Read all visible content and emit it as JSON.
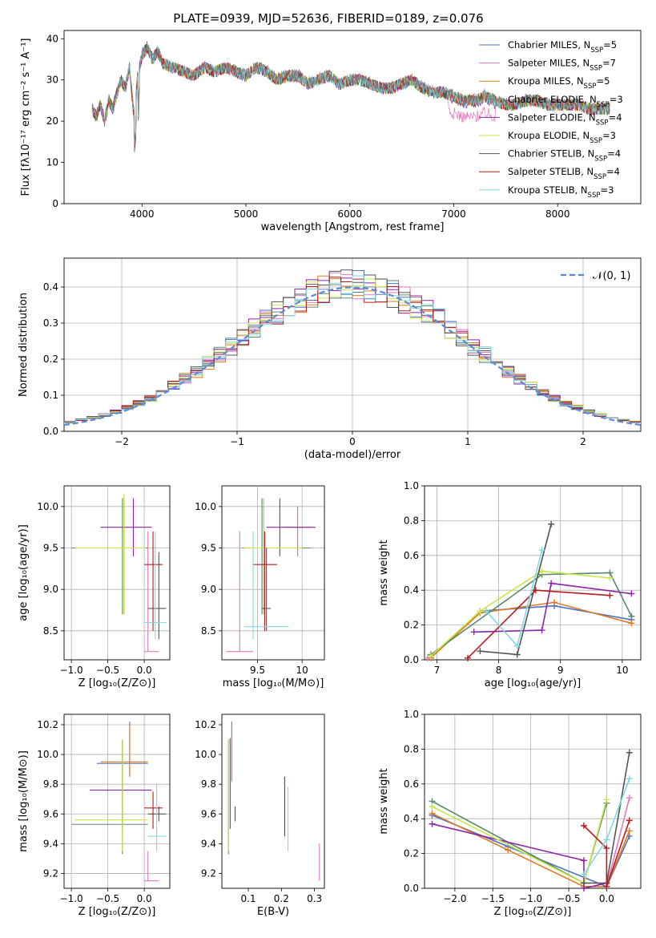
{
  "chart_data": [
    {
      "id": "spectrum",
      "type": "line",
      "title": "PLATE=0939, MJD=52636, FIBERID=0189, z=0.076",
      "xlabel": "wavelength [Angstrom, rest frame]",
      "ylabel": "Flux [fλ10⁻¹⁷ erg cm⁻² s⁻¹ A⁻¹]",
      "xlim": [
        3250,
        8800
      ],
      "ylim": [
        0,
        42
      ],
      "xticks": [
        4000,
        5000,
        6000,
        7000,
        8000
      ],
      "yticks": [
        0,
        10,
        20,
        30,
        40
      ],
      "legend_position": "top-right",
      "data_trace": {
        "x": [
          3520,
          3560,
          3600,
          3640,
          3680,
          3720,
          3760,
          3800,
          3840,
          3880,
          3920,
          3960,
          4000,
          4050,
          4100,
          4150,
          4200,
          4300,
          4400,
          4500,
          4600,
          4700,
          4800,
          4900,
          5000,
          5100,
          5200,
          5300,
          5400,
          5500,
          5600,
          5700,
          5800,
          5900,
          6000,
          6100,
          6200,
          6300,
          6400,
          6500,
          6600,
          6700,
          6800,
          6900,
          7000,
          7100,
          7200,
          7300,
          7400,
          7500,
          7600,
          7700,
          7800,
          7900,
          8000,
          8100,
          8200,
          8300,
          8400,
          8500
        ],
        "y": [
          23,
          21,
          24,
          20,
          25,
          23,
          27,
          30,
          28,
          33,
          22,
          31,
          36,
          38,
          35,
          37,
          34,
          33,
          32,
          31,
          33,
          32,
          33,
          32,
          31,
          33,
          32,
          30,
          31,
          31,
          29,
          30,
          31,
          29,
          30,
          30,
          29,
          28,
          28,
          29,
          30,
          28,
          27,
          27,
          26,
          25,
          25,
          26,
          25,
          24,
          24,
          25,
          25,
          24,
          24,
          24,
          24,
          23,
          23,
          23
        ]
      },
      "model_offsets": [
        {
          "name": "Chabrier MILES, N$_{SSP}$=5",
          "color": "#4a72c4",
          "red_offset": 0
        },
        {
          "name": "Salpeter MILES, N$_{SSP}$=7",
          "color": "#e377c2",
          "red_offset": -4
        },
        {
          "name": "Kroupa MILES, N$_{SSP}$=5",
          "color": "#e07b20",
          "red_offset": 0
        },
        {
          "name": "Chabrier ELODIE, N$_{SSP}$=3",
          "color": "#5a8a6a",
          "red_offset": 0
        },
        {
          "name": "Salpeter ELODIE, N$_{SSP}$=4",
          "color": "#8e24aa",
          "red_offset": -0.5
        },
        {
          "name": "Kroupa ELODIE, N$_{SSP}$=3",
          "color": "#c8e645",
          "red_offset": 0
        },
        {
          "name": "Chabrier STELIB, N$_{SSP}$=4",
          "color": "#555555",
          "red_offset": 0
        },
        {
          "name": "Salpeter STELIB, N$_{SSP}$=4",
          "color": "#b71c1c",
          "red_offset": 0
        },
        {
          "name": "Kroupa STELIB, N$_{SSP}$=3",
          "color": "#80d8e0",
          "red_offset": 0
        }
      ]
    },
    {
      "id": "residuals",
      "type": "line",
      "xlabel": "(data-model)/error",
      "ylabel": "Normed distribution",
      "xlim": [
        -2.5,
        2.5
      ],
      "ylim": [
        0,
        0.48
      ],
      "xticks": [
        -2,
        -1,
        0,
        1,
        2
      ],
      "yticks": [
        0.0,
        0.1,
        0.2,
        0.3,
        0.4
      ],
      "grid": true,
      "legend": "𝒩(0, 1)",
      "legend_position": "top-right"
    },
    {
      "id": "z_age",
      "type": "scatter",
      "xlabel": "Z [log₁₀(Z/Z⊙)]",
      "ylabel": "age [log₁₀(age/yr)]",
      "xlim": [
        -1.1,
        0.35
      ],
      "ylim": [
        8.15,
        10.25
      ],
      "xticks": [
        -1.0,
        -0.5,
        0.0
      ],
      "yticks": [
        8.5,
        9.0,
        9.5,
        10.0
      ],
      "grid": true,
      "points": [
        {
          "c": 0,
          "x": -0.28,
          "y": 9.5,
          "xe": [
            -1.0,
            0.05
          ],
          "ye": [
            8.7,
            10.1
          ]
        },
        {
          "c": 1,
          "x": 0.05,
          "y": 8.25,
          "xe": [
            0.0,
            0.2
          ],
          "ye": [
            8.25,
            9.7
          ]
        },
        {
          "c": 2,
          "x": -0.28,
          "y": 9.5,
          "xe": [
            -1.0,
            0.05
          ],
          "ye": [
            8.7,
            10.05
          ]
        },
        {
          "c": 3,
          "x": -0.3,
          "y": 9.5,
          "xe": [
            -1.0,
            0.05
          ],
          "ye": [
            8.7,
            10.1
          ]
        },
        {
          "c": 4,
          "x": -0.15,
          "y": 9.75,
          "xe": [
            -0.6,
            0.1
          ],
          "ye": [
            9.4,
            10.1
          ]
        },
        {
          "c": 5,
          "x": -0.28,
          "y": 9.5,
          "xe": [
            -0.95,
            0.02
          ],
          "ye": [
            8.7,
            10.15
          ]
        },
        {
          "c": 6,
          "x": 0.2,
          "y": 8.77,
          "xe": [
            0.05,
            0.3
          ],
          "ye": [
            8.4,
            9.45
          ]
        },
        {
          "c": 7,
          "x": 0.12,
          "y": 9.3,
          "xe": [
            0.0,
            0.25
          ],
          "ye": [
            8.5,
            9.7
          ]
        },
        {
          "c": 8,
          "x": 0.15,
          "y": 8.6,
          "xe": [
            0.0,
            0.3
          ],
          "ye": [
            8.4,
            9.7
          ]
        }
      ]
    },
    {
      "id": "mass_age",
      "type": "scatter",
      "xlabel": "mass [log₁₀(M/M⊙)]",
      "ylabel": "",
      "xlim": [
        9.1,
        10.25
      ],
      "ylim": [
        8.15,
        10.25
      ],
      "xticks": [
        9.5,
        10.0
      ],
      "yticks": [
        8.5,
        9.0,
        9.5,
        10.0
      ],
      "grid": true,
      "points": [
        {
          "c": 0,
          "x": 9.57,
          "y": 9.5,
          "xe": [
            9.35,
            10.1
          ],
          "ye": [
            8.7,
            10.1
          ]
        },
        {
          "c": 1,
          "x": 9.3,
          "y": 8.25,
          "xe": [
            9.15,
            9.45
          ],
          "ye": [
            8.25,
            9.7
          ]
        },
        {
          "c": 2,
          "x": 9.95,
          "y": 9.75,
          "xe": [
            9.8,
            10.1
          ],
          "ye": [
            9.4,
            10.0
          ]
        },
        {
          "c": 3,
          "x": 9.55,
          "y": 9.5,
          "xe": [
            9.33,
            10.1
          ],
          "ye": [
            8.7,
            10.1
          ]
        },
        {
          "c": 4,
          "x": 9.75,
          "y": 9.75,
          "xe": [
            9.6,
            10.15
          ],
          "ye": [
            9.4,
            10.1
          ]
        },
        {
          "c": 5,
          "x": 9.57,
          "y": 9.5,
          "xe": [
            9.35,
            10.0
          ],
          "ye": [
            8.7,
            10.1
          ]
        },
        {
          "c": 6,
          "x": 9.6,
          "y": 8.77,
          "xe": [
            9.55,
            9.65
          ],
          "ye": [
            8.5,
            9.5
          ]
        },
        {
          "c": 7,
          "x": 9.58,
          "y": 9.3,
          "xe": [
            9.45,
            9.72
          ],
          "ye": [
            8.5,
            9.7
          ]
        },
        {
          "c": 8,
          "x": 9.45,
          "y": 8.55,
          "xe": [
            9.35,
            9.85
          ],
          "ye": [
            8.4,
            9.7
          ]
        }
      ]
    },
    {
      "id": "age_weight",
      "type": "line",
      "xlabel": "age [log₁₀(age/yr)]",
      "ylabel": "mass weight",
      "xlim": [
        6.8,
        10.3
      ],
      "ylim": [
        0,
        1.0
      ],
      "xticks": [
        7,
        8,
        9,
        10
      ],
      "yticks": [
        0.0,
        0.2,
        0.4,
        0.6,
        0.8,
        1.0
      ],
      "grid": true,
      "series": [
        {
          "c": 0,
          "x": [
            6.9,
            7.7,
            8.9,
            10.15
          ],
          "y": [
            0.01,
            0.28,
            0.31,
            0.23
          ]
        },
        {
          "c": 1,
          "x": 6.85,
          "y": 0.01
        },
        {
          "c": 2,
          "x": [
            6.9,
            7.7,
            8.9,
            10.15
          ],
          "y": [
            0.01,
            0.27,
            0.33,
            0.21
          ]
        },
        {
          "c": 3,
          "x": [
            6.9,
            8.7,
            9.8,
            10.15
          ],
          "y": [
            0.03,
            0.49,
            0.5,
            0.25
          ]
        },
        {
          "c": 4,
          "x": [
            7.6,
            8.7,
            8.85,
            10.15
          ],
          "y": [
            0.16,
            0.17,
            0.44,
            0.38
          ]
        },
        {
          "c": 5,
          "x": [
            6.9,
            7.7,
            8.7,
            9.8
          ],
          "y": [
            0.02,
            0.28,
            0.51,
            0.47
          ]
        },
        {
          "c": 6,
          "x": [
            7.7,
            8.3,
            8.85
          ],
          "y": [
            0.05,
            0.03,
            0.78
          ]
        },
        {
          "c": 7,
          "x": [
            7.5,
            8.6,
            9.8
          ],
          "y": [
            0.01,
            0.4,
            0.37
          ]
        },
        {
          "c": 8,
          "x": [
            7.8,
            8.3,
            8.7
          ],
          "y": [
            0.28,
            0.08,
            0.63
          ]
        }
      ]
    },
    {
      "id": "z_mass",
      "type": "scatter",
      "xlabel": "Z [log₁₀(Z/Z⊙)]",
      "ylabel": "mass [log₁₀(M/M⊙)]",
      "xlim": [
        -1.1,
        0.35
      ],
      "ylim": [
        9.1,
        10.27
      ],
      "xticks": [
        -1.0,
        -0.5,
        0.0
      ],
      "yticks": [
        9.2,
        9.4,
        9.6,
        9.8,
        10.0,
        10.2
      ],
      "grid": true,
      "points": [
        {
          "c": 0,
          "x": -0.2,
          "y": 9.94,
          "xe": [
            -0.65,
            0.05
          ],
          "ye": [
            9.85,
            10.22
          ]
        },
        {
          "c": 1,
          "x": 0.05,
          "y": 9.15,
          "xe": [
            0.0,
            0.2
          ],
          "ye": [
            9.15,
            9.35
          ]
        },
        {
          "c": 2,
          "x": -0.2,
          "y": 9.95,
          "xe": [
            -0.6,
            0.05
          ],
          "ye": [
            9.85,
            10.2
          ]
        },
        {
          "c": 3,
          "x": -0.3,
          "y": 9.53,
          "xe": [
            -1.0,
            0.05
          ],
          "ye": [
            9.33,
            10.1
          ]
        },
        {
          "c": 4,
          "x": -0.3,
          "y": 9.76,
          "xe": [
            -0.75,
            0.1
          ],
          "ye": [
            9.5,
            10.1
          ]
        },
        {
          "c": 5,
          "x": -0.3,
          "y": 9.56,
          "xe": [
            -0.95,
            0.05
          ],
          "ye": [
            9.35,
            10.1
          ]
        },
        {
          "c": 6,
          "x": 0.2,
          "y": 9.6,
          "xe": [
            0.05,
            0.3
          ],
          "ye": [
            9.55,
            9.65
          ]
        },
        {
          "c": 7,
          "x": 0.12,
          "y": 9.64,
          "xe": [
            0.0,
            0.25
          ],
          "ye": [
            9.5,
            9.75
          ]
        },
        {
          "c": 8,
          "x": 0.17,
          "y": 9.45,
          "xe": [
            0.05,
            0.3
          ],
          "ye": [
            9.35,
            9.8
          ]
        }
      ]
    },
    {
      "id": "ebv_mass",
      "type": "scatter",
      "xlabel": "E(B-V)",
      "ylabel": "",
      "xlim": [
        0.02,
        0.33
      ],
      "ylim": [
        9.1,
        10.27
      ],
      "xticks": [
        0.1,
        0.2,
        0.3
      ],
      "yticks": [
        9.2,
        9.4,
        9.6,
        9.8,
        10.0,
        10.2
      ],
      "grid": false,
      "points": [
        {
          "c": 0,
          "x": 0.05,
          "y": 10.0,
          "ye": [
            9.82,
            10.22
          ]
        },
        {
          "c": 1,
          "x": 0.315,
          "y": 9.28,
          "ye": [
            9.15,
            9.4
          ]
        },
        {
          "c": 2,
          "x": 0.05,
          "y": 10.02,
          "ye": [
            9.83,
            10.2
          ]
        },
        {
          "c": 3,
          "x": 0.04,
          "y": 9.7,
          "ye": [
            9.33,
            10.1
          ]
        },
        {
          "c": 4,
          "x": 0.045,
          "y": 9.8,
          "ye": [
            9.5,
            10.11
          ]
        },
        {
          "c": 5,
          "x": 0.04,
          "y": 9.7,
          "ye": [
            9.35,
            10.1
          ]
        },
        {
          "c": 6,
          "x": 0.06,
          "y": 9.6,
          "ye": [
            9.55,
            9.65
          ]
        },
        {
          "c": 7,
          "x": 0.21,
          "y": 9.64,
          "ye": [
            9.45,
            9.85
          ]
        },
        {
          "c": 8,
          "x": 0.22,
          "y": 9.55,
          "ye": [
            9.35,
            9.78
          ]
        }
      ]
    },
    {
      "id": "z_weight",
      "type": "line",
      "xlabel": "Z [log₁₀(Z/Z⊙)]",
      "ylabel": "mass weight",
      "xlim": [
        -2.4,
        0.45
      ],
      "ylim": [
        0,
        1.0
      ],
      "xticks": [
        -2.0,
        -1.5,
        -1.0,
        -0.5,
        0.0
      ],
      "yticks": [
        0.0,
        0.2,
        0.4,
        0.6,
        0.8,
        1.0
      ],
      "grid": true,
      "series": [
        {
          "c": 0,
          "x": [
            -2.3,
            -1.3,
            0.0,
            0.3
          ],
          "y": [
            0.42,
            0.24,
            0.01,
            0.3
          ]
        },
        {
          "c": 1,
          "x": [
            0.0,
            0.3
          ],
          "y": [
            0.01,
            0.52
          ]
        },
        {
          "c": 2,
          "x": [
            -2.3,
            -1.3,
            -0.3,
            0.0,
            0.3
          ],
          "y": [
            0.43,
            0.22,
            0.01,
            0.01,
            0.33
          ]
        },
        {
          "c": 3,
          "x": [
            -2.3,
            -0.3,
            0.0
          ],
          "y": [
            0.5,
            0.03,
            0.49
          ]
        },
        {
          "c": 4,
          "x": [
            -2.3,
            -0.3,
            -0.3,
            0.0
          ],
          "y": [
            0.37,
            0.16,
            0.0,
            0.03
          ]
        },
        {
          "c": 5,
          "x": [
            -2.3,
            -0.3,
            0.0
          ],
          "y": [
            0.47,
            0.03,
            0.51
          ]
        },
        {
          "c": 6,
          "x": [
            -0.3,
            0.0,
            0.3
          ],
          "y": [
            0.03,
            0.03,
            0.78
          ]
        },
        {
          "c": 7,
          "x": [
            -0.3,
            0.0,
            0.0,
            0.3
          ],
          "y": [
            0.36,
            0.23,
            0.01,
            0.39
          ]
        },
        {
          "c": 8,
          "x": [
            -0.3,
            0.0,
            0.3
          ],
          "y": [
            0.08,
            0.28,
            0.63
          ]
        }
      ]
    }
  ]
}
